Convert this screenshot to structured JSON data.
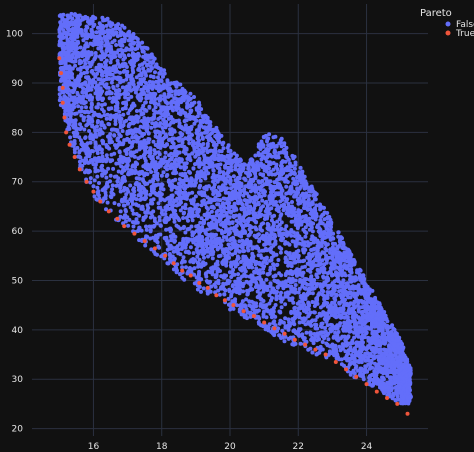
{
  "chart_data": {
    "type": "scatter",
    "title": "",
    "xlabel": "",
    "ylabel": "",
    "xlim": [
      14.2,
      25.8
    ],
    "ylim": [
      18.5,
      106
    ],
    "x_ticks": [
      16,
      18,
      20,
      22,
      24
    ],
    "y_ticks": [
      20,
      30,
      40,
      50,
      60,
      70,
      80,
      90,
      100
    ],
    "grid": true,
    "background": "#111111",
    "legend": {
      "title": "Pareto",
      "placement": "top-right",
      "entries": [
        {
          "name": "False",
          "color": "#636efa"
        },
        {
          "name": "True",
          "color": "#ef553b"
        }
      ]
    },
    "series": [
      {
        "name": "False",
        "color": "#636efa",
        "note_region": "dense cloud between lower frontier and upper envelope",
        "envelope_upper": [
          [
            15.9,
            104
          ],
          [
            16.5,
            103
          ],
          [
            17.0,
            101
          ],
          [
            17.5,
            98
          ],
          [
            18.0,
            93
          ],
          [
            18.5,
            90
          ],
          [
            19.0,
            87
          ],
          [
            19.5,
            82
          ],
          [
            20.0,
            77
          ],
          [
            20.5,
            73
          ],
          [
            21.0,
            80
          ],
          [
            21.5,
            79
          ],
          [
            22.0,
            74
          ],
          [
            22.5,
            68
          ],
          [
            23.0,
            62
          ],
          [
            23.5,
            56
          ],
          [
            24.0,
            50
          ],
          [
            24.5,
            44
          ],
          [
            25.0,
            38
          ],
          [
            25.3,
            32
          ]
        ],
        "envelope_lower": [
          [
            15.0,
            86
          ],
          [
            15.5,
            74
          ],
          [
            16.0,
            67
          ],
          [
            16.5,
            63
          ],
          [
            17.0,
            60
          ],
          [
            17.5,
            57
          ],
          [
            18.0,
            54
          ],
          [
            18.5,
            51
          ],
          [
            19.0,
            48
          ],
          [
            19.5,
            46
          ],
          [
            20.0,
            44
          ],
          [
            20.5,
            42
          ],
          [
            21.0,
            40
          ],
          [
            21.5,
            38
          ],
          [
            22.0,
            36
          ],
          [
            22.5,
            35
          ],
          [
            23.0,
            34
          ],
          [
            23.5,
            31
          ],
          [
            24.0,
            29
          ],
          [
            24.5,
            27
          ],
          [
            25.0,
            25
          ]
        ]
      },
      {
        "name": "True",
        "color": "#ef553b",
        "points": [
          [
            15.0,
            95
          ],
          [
            15.05,
            92
          ],
          [
            15.1,
            89
          ],
          [
            15.1,
            86
          ],
          [
            15.15,
            83
          ],
          [
            15.2,
            80
          ],
          [
            15.3,
            77.5
          ],
          [
            15.45,
            75
          ],
          [
            15.6,
            72.5
          ],
          [
            15.8,
            70
          ],
          [
            16.0,
            68
          ],
          [
            16.2,
            66
          ],
          [
            16.45,
            64
          ],
          [
            16.7,
            62.5
          ],
          [
            16.9,
            61
          ],
          [
            17.2,
            59.5
          ],
          [
            17.5,
            58
          ],
          [
            17.8,
            56.5
          ],
          [
            18.1,
            55
          ],
          [
            18.35,
            53.5
          ],
          [
            18.6,
            52
          ],
          [
            18.85,
            51
          ],
          [
            19.1,
            49.5
          ],
          [
            19.35,
            48.5
          ],
          [
            19.6,
            47
          ],
          [
            19.85,
            46
          ],
          [
            20.1,
            45
          ],
          [
            20.4,
            43.8
          ],
          [
            20.7,
            42.8
          ],
          [
            21.0,
            41.5
          ],
          [
            21.3,
            40.3
          ],
          [
            21.6,
            39.2
          ],
          [
            21.9,
            38
          ],
          [
            22.2,
            37
          ],
          [
            22.5,
            36
          ],
          [
            22.8,
            35
          ],
          [
            23.1,
            33.5
          ],
          [
            23.4,
            32
          ],
          [
            23.7,
            30.5
          ],
          [
            24.0,
            29
          ],
          [
            24.3,
            27.5
          ],
          [
            24.6,
            26.2
          ],
          [
            24.9,
            25
          ],
          [
            25.2,
            23
          ]
        ]
      }
    ]
  }
}
